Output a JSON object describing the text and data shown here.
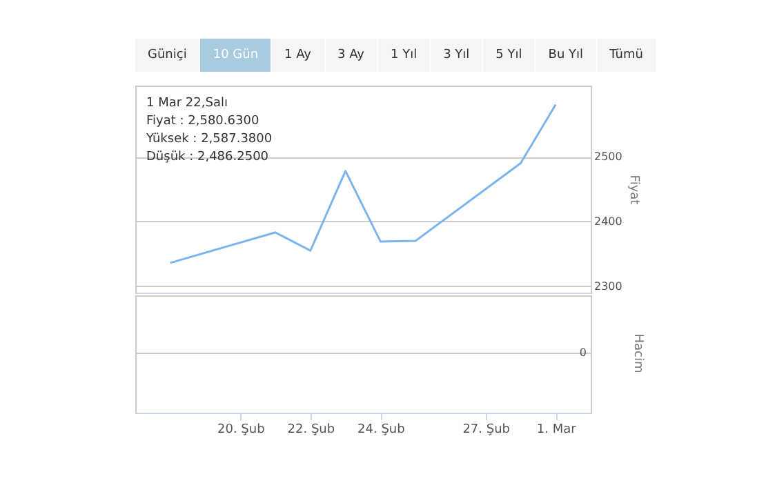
{
  "chart_data": [
    {
      "type": "line",
      "x": [
        "--02-18",
        "--02-21",
        "--02-22",
        "--02-23",
        "--02-24",
        "--02-25",
        "--02-28",
        "--03-01"
      ],
      "series": [
        {
          "color": "#7cb5ec",
          "values": [
            2336,
            2383,
            2355,
            2478,
            2369,
            2370,
            2490,
            2580.63
          ]
        }
      ],
      "ylabel": "Fiyat",
      "ylim": [
        2290,
        2610
      ],
      "yticks": [
        2300,
        2400,
        2500
      ],
      "xlim": [
        "--02-17",
        "--03-02"
      ],
      "grid": "y",
      "tick_labels": "y",
      "xticks": [
        {
          "value": "--02-20",
          "label": "20. Şub"
        },
        {
          "value": "--02-22",
          "label": "22. Şub"
        },
        {
          "value": "--02-24",
          "label": "24. Şub"
        },
        {
          "value": "--02-27",
          "label": "27. Şub"
        },
        {
          "value": "--03-01",
          "label": "1. Mar"
        }
      ],
      "annotations": [
        "Güniçi",
        "10 Gün",
        "1 Ay",
        "3 Ay",
        "1 Yıl",
        "3 Yıl",
        "5 Yıl",
        "Bu Yıl",
        "Tümü",
        "1 Mar 22,Salı\nFiyat : 2,580.6300\nYüksek : 2,587.3800\nDüşük : 2,486.2500"
      ]
    },
    {
      "type": "other",
      "ylabel": "Hacim",
      "annotations": [
        "0"
      ]
    }
  ]
}
